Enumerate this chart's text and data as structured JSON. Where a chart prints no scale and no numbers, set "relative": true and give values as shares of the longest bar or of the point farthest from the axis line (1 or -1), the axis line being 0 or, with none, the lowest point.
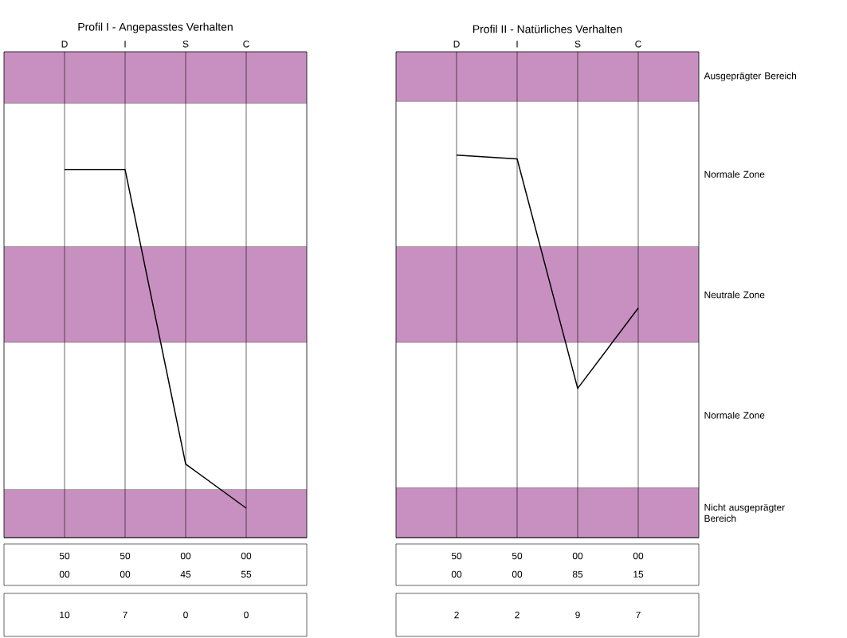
{
  "chart_data": [
    {
      "type": "line",
      "title": "Profil I - Angepasstes Verhalten",
      "categories": [
        "D",
        "I",
        "S",
        "C"
      ],
      "relative": true,
      "grid": "x",
      "marker": "none",
      "line_style": "solid",
      "series": [
        {
          "color": "#000000",
          "values": [
            1,
            1,
            0.2,
            0.08
          ]
        }
      ],
      "bands": [
        {
          "axis": "y",
          "from": 1.18,
          "to": 1.32,
          "color": "#c890c0"
        },
        {
          "axis": "y",
          "from": 0.79,
          "to": 1.18,
          "color": "#ffffff"
        },
        {
          "axis": "y",
          "from": 0.53,
          "to": 0.79,
          "color": "#c890c0"
        },
        {
          "axis": "y",
          "from": 0.13,
          "to": 0.53,
          "color": "#ffffff"
        },
        {
          "axis": "y",
          "from": 0,
          "to": 0.13,
          "color": "#c890c0"
        }
      ],
      "annotations": [
        "50",
        "50",
        "00",
        "00",
        "00",
        "00",
        "45",
        "55",
        "10",
        "7",
        "0",
        "0"
      ]
    },
    {
      "type": "line",
      "title": "Profil II - Natürliches Verhalten",
      "categories": [
        "D",
        "I",
        "S",
        "C"
      ],
      "relative": true,
      "grid": "x",
      "marker": "none",
      "line_style": "solid",
      "series": [
        {
          "color": "#000000",
          "values": [
            1,
            0.99,
            0.39,
            0.6
          ]
        }
      ],
      "bands": [
        {
          "axis": "y",
          "from": 1.14,
          "to": 1.27,
          "color": "#c890c0",
          "label": "Ausgeprägter Bereich"
        },
        {
          "axis": "y",
          "from": 0.76,
          "to": 1.14,
          "color": "#ffffff",
          "label": "Normale Zone"
        },
        {
          "axis": "y",
          "from": 0.51,
          "to": 0.76,
          "color": "#c890c0",
          "label": "Neutrale Zone"
        },
        {
          "axis": "y",
          "from": 0.13,
          "to": 0.51,
          "color": "#ffffff",
          "label": "Normale Zone"
        },
        {
          "axis": "y",
          "from": 0,
          "to": 0.13,
          "color": "#c890c0",
          "label": "Nicht ausgeprägter Bereich"
        }
      ],
      "annotations": [
        "50",
        "50",
        "00",
        "00",
        "00",
        "00",
        "85",
        "15",
        "2",
        "2",
        "9",
        "7"
      ]
    }
  ]
}
